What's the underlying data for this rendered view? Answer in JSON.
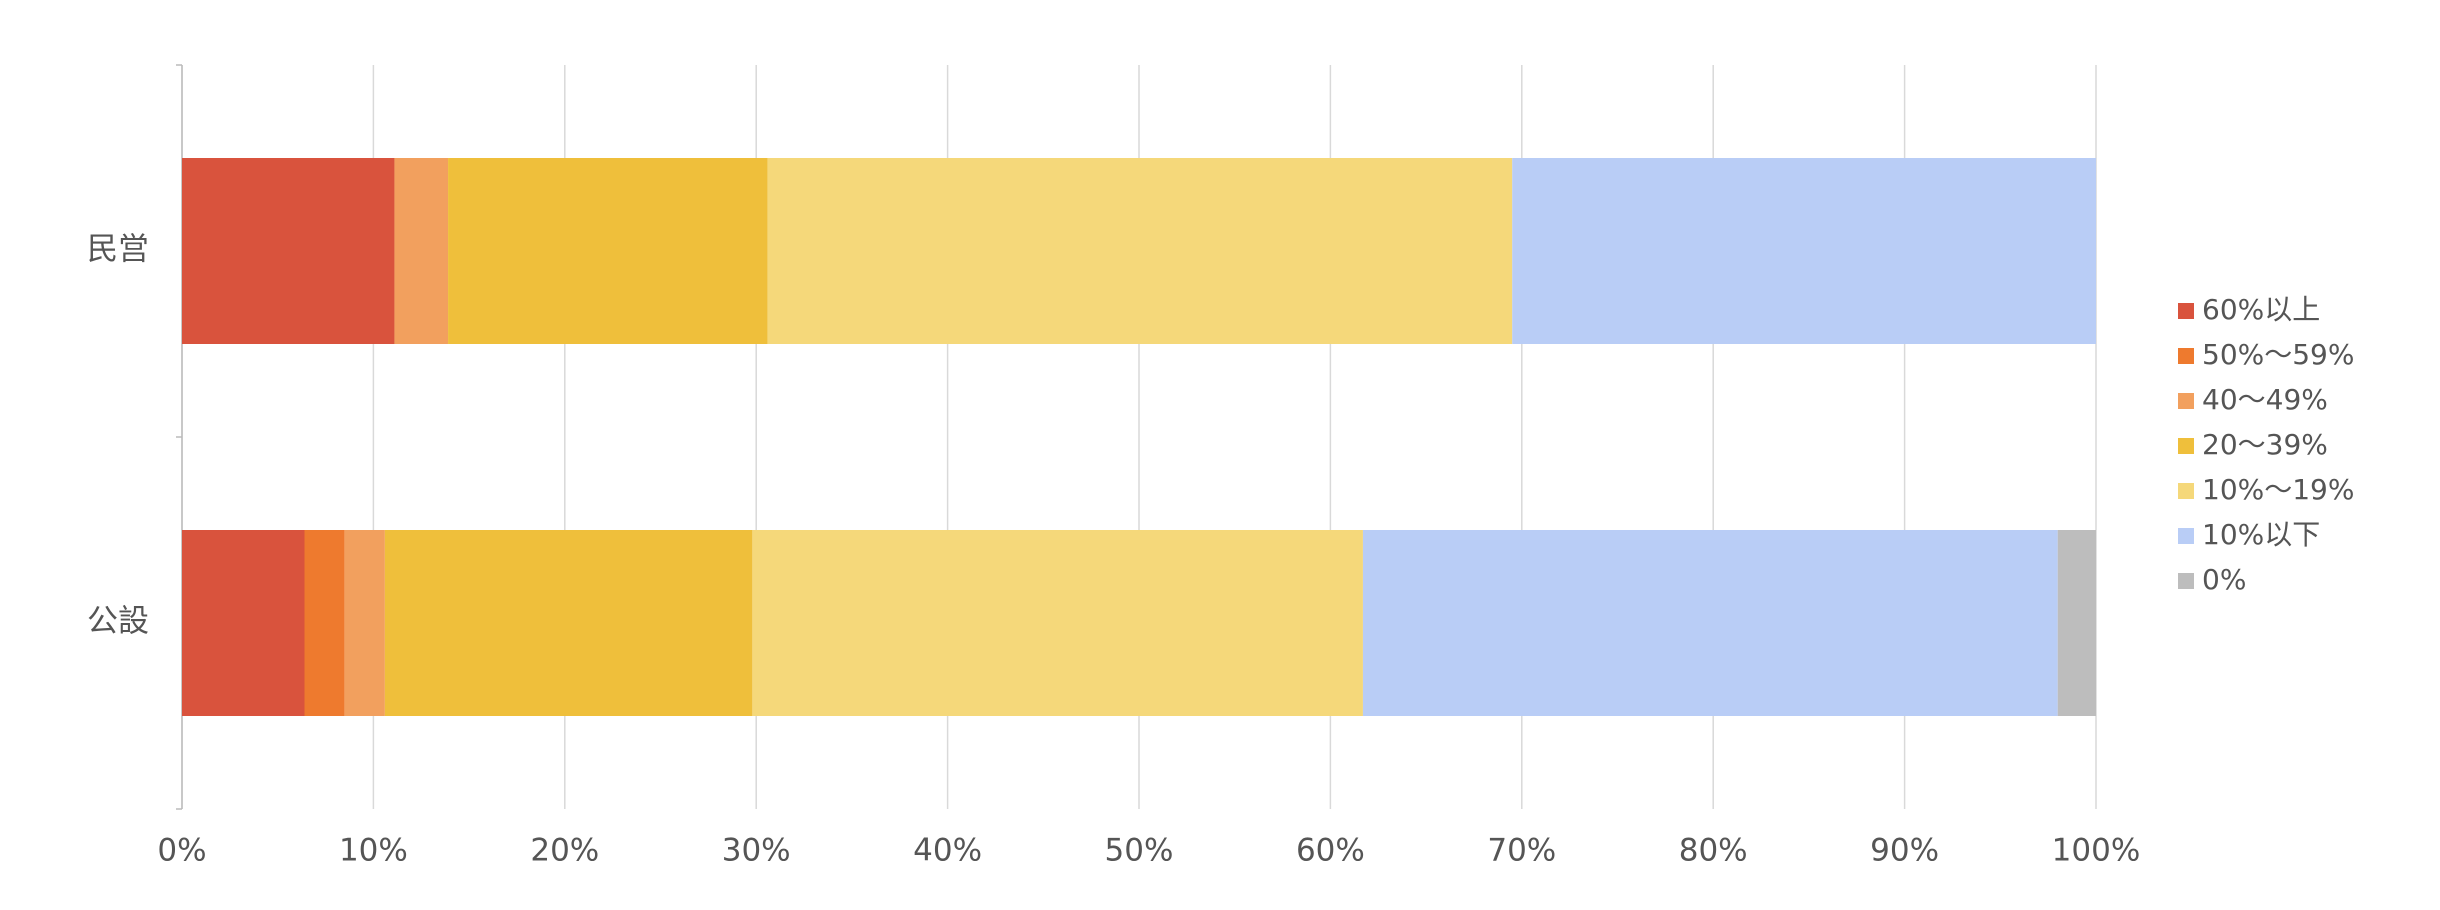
{
  "chart_data": {
    "type": "stacked_bar_horizontal",
    "categories": [
      "民営",
      "公設"
    ],
    "series": [
      {
        "name": "60%以上",
        "color": "#d9533d",
        "values": [
          11.1,
          6.4
        ]
      },
      {
        "name": "50%〜59%",
        "color": "#ee7a2e",
        "values": [
          0,
          2.1
        ]
      },
      {
        "name": "40〜49%",
        "color": "#f2a05e",
        "values": [
          2.8,
          2.1
        ]
      },
      {
        "name": "20〜39%",
        "color": "#efbf3b",
        "values": [
          16.7,
          19.2
        ]
      },
      {
        "name": "10%〜19%",
        "color": "#f5d87a",
        "values": [
          38.9,
          31.9
        ]
      },
      {
        "name": "10%以下",
        "color": "#b9cdf6",
        "values": [
          30.5,
          36.3
        ]
      },
      {
        "name": "0%",
        "color": "#bdbdbd",
        "values": [
          0,
          2.0
        ]
      }
    ],
    "xlim": [
      0,
      100
    ],
    "xticks": [
      {
        "value": 0,
        "label": "0%"
      },
      {
        "value": 10,
        "label": "10%"
      },
      {
        "value": 20,
        "label": "20%"
      },
      {
        "value": 30,
        "label": "30%"
      },
      {
        "value": 40,
        "label": "40%"
      },
      {
        "value": 50,
        "label": "50%"
      },
      {
        "value": 60,
        "label": "60%"
      },
      {
        "value": 70,
        "label": "70%"
      },
      {
        "value": 80,
        "label": "80%"
      },
      {
        "value": 90,
        "label": "90%"
      },
      {
        "value": 100,
        "label": "100%"
      }
    ],
    "grid": true,
    "legend": "right"
  }
}
